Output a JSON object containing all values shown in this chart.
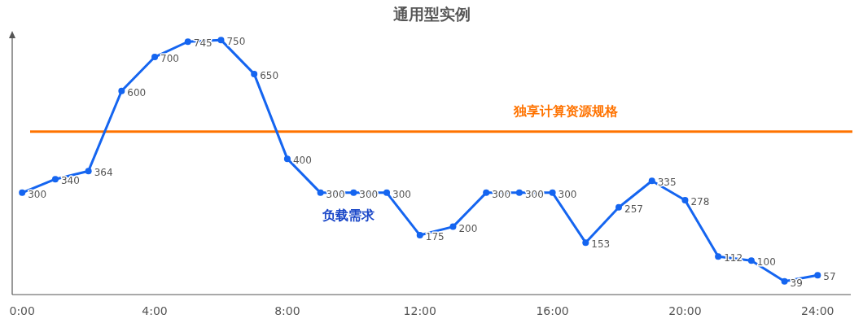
{
  "chart_data": {
    "type": "line",
    "title": "通用型实例",
    "x": [
      0,
      1,
      2,
      3,
      4,
      5,
      6,
      7,
      8,
      9,
      10,
      11,
      12,
      13,
      14,
      15,
      16,
      17,
      18,
      19,
      20,
      21,
      22,
      23,
      24
    ],
    "series": [
      {
        "name": "负载需求",
        "color": "#1565f0",
        "values": [
          300,
          340,
          364,
          600,
          700,
          745,
          750,
          650,
          400,
          300,
          300,
          300,
          175,
          200,
          300,
          300,
          300,
          153,
          257,
          335,
          278,
          112,
          100,
          39,
          57
        ]
      }
    ],
    "xlim": [
      -0.3,
      25
    ],
    "ylim": [
      0,
      760
    ],
    "xticks": [
      {
        "value": 0,
        "label": "0:00"
      },
      {
        "value": 4,
        "label": "4:00"
      },
      {
        "value": 8,
        "label": "8:00"
      },
      {
        "value": 12,
        "label": "12:00"
      },
      {
        "value": 16,
        "label": "16:00"
      },
      {
        "value": 20,
        "label": "20:00"
      },
      {
        "value": 24,
        "label": "24:00"
      }
    ],
    "ref_lines": [
      {
        "axis": "y",
        "value": 480,
        "label": "独享计算资源规格",
        "color": "#ff7300"
      }
    ],
    "data_labels": true,
    "marker": "circle",
    "line_style": "solid"
  }
}
